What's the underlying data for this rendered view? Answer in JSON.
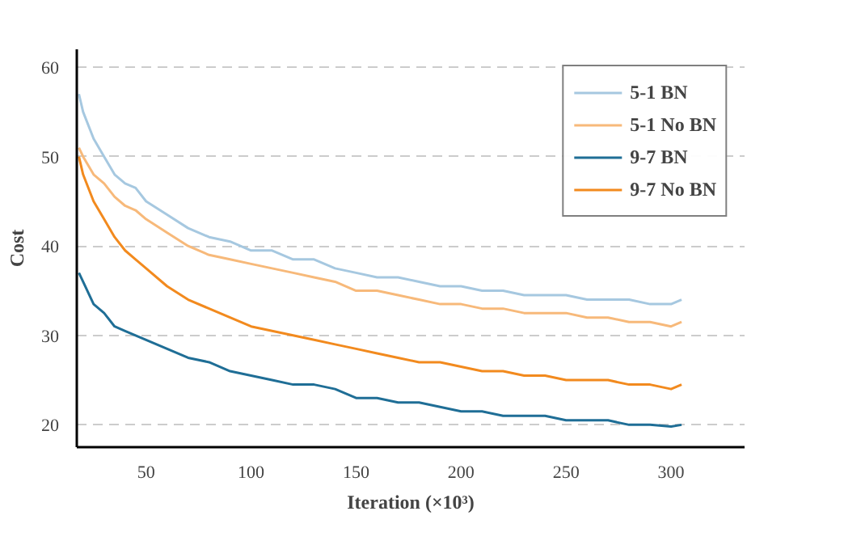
{
  "chart_data": {
    "type": "line",
    "xlabel": "Iteration (×10³)",
    "ylabel": "Cost",
    "x": [
      18,
      20,
      25,
      30,
      35,
      40,
      45,
      50,
      60,
      70,
      80,
      90,
      100,
      110,
      120,
      130,
      140,
      150,
      160,
      170,
      180,
      190,
      200,
      210,
      220,
      230,
      240,
      250,
      260,
      270,
      280,
      290,
      300,
      305
    ],
    "series": [
      {
        "name": "5-1 BN",
        "color": "#a6c8e0",
        "values": [
          57,
          55,
          52,
          50,
          48,
          47,
          46.5,
          45,
          43.5,
          42,
          41,
          40.5,
          39.5,
          39.5,
          38.5,
          38.5,
          37.5,
          37,
          36.5,
          36.5,
          36,
          35.5,
          35.5,
          35,
          35,
          34.5,
          34.5,
          34.5,
          34,
          34,
          34,
          33.5,
          33.5,
          34
        ]
      },
      {
        "name": "5-1 No BN",
        "color": "#f7b97a",
        "values": [
          51,
          50,
          48,
          47,
          45.5,
          44.5,
          44,
          43,
          41.5,
          40,
          39,
          38.5,
          38,
          37.5,
          37,
          36.5,
          36,
          35,
          35,
          34.5,
          34,
          33.5,
          33.5,
          33,
          33,
          32.5,
          32.5,
          32.5,
          32,
          32,
          31.5,
          31.5,
          31,
          31.5
        ]
      },
      {
        "name": "9-7 BN",
        "color": "#1f6e96",
        "values": [
          37,
          36,
          33.5,
          32.5,
          31,
          30.5,
          30,
          29.5,
          28.5,
          27.5,
          27,
          26,
          25.5,
          25,
          24.5,
          24.5,
          24,
          23,
          23,
          22.5,
          22.5,
          22,
          21.5,
          21.5,
          21,
          21,
          21,
          20.5,
          20.5,
          20.5,
          20,
          20,
          19.8,
          20
        ]
      },
      {
        "name": "9-7 No BN",
        "color": "#f28a1e",
        "values": [
          50,
          48,
          45,
          43,
          41,
          39.5,
          38.5,
          37.5,
          35.5,
          34,
          33,
          32,
          31,
          30.5,
          30,
          29.5,
          29,
          28.5,
          28,
          27.5,
          27,
          27,
          26.5,
          26,
          26,
          25.5,
          25.5,
          25,
          25,
          25,
          24.5,
          24.5,
          24,
          24.5
        ]
      }
    ],
    "xlim": [
      17,
      335
    ],
    "ylim": [
      17.5,
      62
    ],
    "xticks": [
      50,
      100,
      150,
      200,
      250,
      300
    ],
    "yticks": [
      20,
      30,
      40,
      50,
      60
    ],
    "grid": "y",
    "legend": "top right",
    "line_style": "solid",
    "marker": "none"
  }
}
